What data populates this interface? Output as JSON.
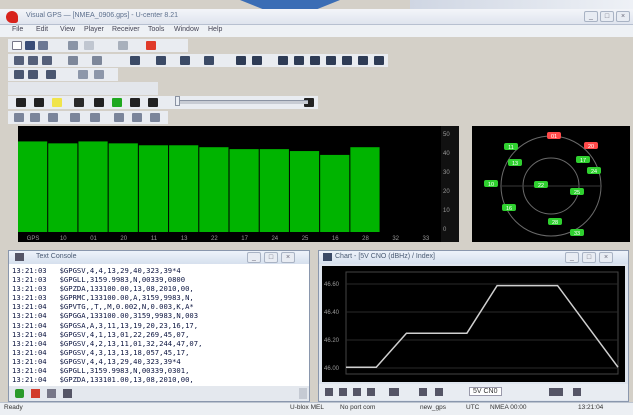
{
  "window": {
    "title": "Visual GPS — [NMEA_0906.gps] - U-center 8.21",
    "buttons": [
      "_",
      "□",
      "×"
    ]
  },
  "menus": [
    "File",
    "Edit",
    "View",
    "Player",
    "Receiver",
    "Tools",
    "Window",
    "Help"
  ],
  "colors": {
    "accent_red": "#d8231c",
    "bar_green": "#00b400",
    "satellite_green": "#2fd02f",
    "satellite_red": "#ff4a4a",
    "chart_line": "#cfcfcf"
  },
  "console": {
    "title": "Text Console",
    "lines": [
      "13:21:03   $GPGSV,4,4,13,29,40,323,39*4",
      "13:21:03   $GPGLL,3159.9983,N,00339,0800",
      "13:21:03   $GPZDA,133100.00,13,08,2010,00,",
      "13:21:03   $GPRMC,133100.00,A,3159,9983,N,",
      "13:21:04   $GPVTG,,T,,M,0.002,N,0.003,K,A*",
      "13:21:04   $GPGGA,133100.00,3159,9983,N,003",
      "13:21:04   $GPGSA,A,3,11,13,19,20,23,16,17,",
      "13:21:04   $GPGSV,4,1,13,01,22,269,45,07,",
      "13:21:04   $GPGSV,4,2,13,11,01,32,244,47,07,",
      "13:21:04   $GPGSV,4,3,13,13,18,057,45,17,",
      "13:21:04   $GPGSV,4,4,13,29,40,323,39*4",
      "13:21:04   $GPGLL,3159.9983,N,00339,0301,",
      "13:21:04   $GPZDA,133101.00,13,08,2010,00,"
    ]
  },
  "chart": {
    "title": "Chart - [5V CNO (dBHz) / Index]",
    "y_ticks": [
      "46.60",
      "46.40",
      "46.20",
      "46.00"
    ],
    "tool_label": "5V CN0"
  },
  "chart_data": {
    "type": "line",
    "x": [
      0,
      1,
      2,
      3,
      4,
      5,
      6,
      7,
      8,
      9
    ],
    "values": [
      46.0,
      46.0,
      46.25,
      46.25,
      46.25,
      46.6,
      46.6,
      46.6,
      46.3,
      46.0
    ],
    "ylim": [
      45.95,
      46.7
    ]
  },
  "bar_chart": {
    "type": "bar",
    "categories": [
      "GPS",
      "10",
      "01",
      "20",
      "11",
      "13",
      "22",
      "17",
      "24",
      "25",
      "16",
      "28",
      "32",
      "33"
    ],
    "values": [
      47,
      46,
      47,
      46,
      45,
      45,
      44,
      43,
      43,
      42,
      40,
      44,
      0,
      0
    ],
    "ylim": [
      0,
      55
    ],
    "y_ticks": [
      "50",
      "40",
      "30",
      "20",
      "10",
      "0"
    ]
  },
  "sky_view": {
    "satellites": [
      {
        "id": "01",
        "status": "red"
      },
      {
        "id": "11",
        "status": "green"
      },
      {
        "id": "20",
        "status": "red"
      },
      {
        "id": "17",
        "status": "green"
      },
      {
        "id": "13",
        "status": "green"
      },
      {
        "id": "24",
        "status": "green"
      },
      {
        "id": "10",
        "status": "green"
      },
      {
        "id": "22",
        "status": "green"
      },
      {
        "id": "25",
        "status": "green"
      },
      {
        "id": "16",
        "status": "green"
      },
      {
        "id": "28",
        "status": "green"
      },
      {
        "id": "33",
        "status": "green"
      }
    ]
  },
  "statusbar": {
    "left": "Ready",
    "items": [
      "U-blox MEL",
      "No port com",
      "new_gps",
      "UTC",
      "NMEA 00:00",
      "13:21:04"
    ]
  }
}
